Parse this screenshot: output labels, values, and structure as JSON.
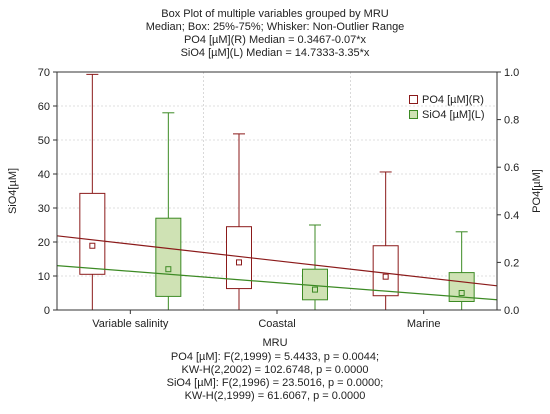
{
  "header": {
    "title_lines": [
      "Box Plot of multiple variables grouped by  MRU",
      "Median; Box: 25%-75%; Whisker: Non-Outlier Range",
      "PO4 [µM](R) Median = 0.3467-0.07*x",
      "SiO4 [µM](L) Median = 14.7333-3.35*x"
    ]
  },
  "footer": {
    "xlabel": "MRU",
    "stat_lines": [
      "PO4 [µM]:   F(2,1999) = 5.4433, p = 0.0044;",
      "KW-H(2,2002) = 102.6748, p = 0.0000",
      "SiO4 [µM]:   F(2,1996) = 23.5016, p = 0.0000;",
      "KW-H(2,1999) = 61.6067, p = 0.0000"
    ]
  },
  "colors": {
    "po4": "#8b1a1a",
    "sio4": "#3c8a24",
    "sio4_fill": "#cfe2b4",
    "axis": "#333333",
    "grid": "#c0c0c0"
  },
  "chart_data": {
    "type": "box",
    "categories": [
      "Variable salinity",
      "Coastal",
      "Marine"
    ],
    "xlabel": "MRU",
    "ylabel_left": "SiO4[µM]",
    "ylabel_right": "PO4[µM]",
    "ylim_left": [
      0,
      70
    ],
    "yticks_left": [
      0,
      10,
      20,
      30,
      40,
      50,
      60,
      70
    ],
    "ylim_right": [
      0,
      1.0
    ],
    "yticks_right": [
      "0.0",
      "0.2",
      "0.4",
      "0.6",
      "0.8",
      "1.0"
    ],
    "grid": true,
    "legend_position": "top-right",
    "series": [
      {
        "name": "PO4 [µM](R)",
        "axis": "right",
        "boxes": [
          {
            "category": "Variable salinity",
            "whisker_low": 0.0,
            "q1": 0.15,
            "median": 0.27,
            "q3": 0.49,
            "whisker_high": 0.99
          },
          {
            "category": "Coastal",
            "whisker_low": 0.0,
            "q1": 0.09,
            "median": 0.2,
            "q3": 0.35,
            "whisker_high": 0.74
          },
          {
            "category": "Marine",
            "whisker_low": 0.0,
            "q1": 0.06,
            "median": 0.14,
            "q3": 0.27,
            "whisker_high": 0.58
          }
        ],
        "trend": {
          "intercept": 0.3467,
          "slope": -0.07
        }
      },
      {
        "name": "SiO4 [µM](L)",
        "axis": "left",
        "boxes": [
          {
            "category": "Variable salinity",
            "whisker_low": 0.0,
            "q1": 4.0,
            "median": 12.0,
            "q3": 27.0,
            "whisker_high": 58.0
          },
          {
            "category": "Coastal",
            "whisker_low": 0.0,
            "q1": 3.0,
            "median": 6.0,
            "q3": 12.0,
            "whisker_high": 25.0
          },
          {
            "category": "Marine",
            "whisker_low": 0.0,
            "q1": 2.5,
            "median": 5.0,
            "q3": 11.0,
            "whisker_high": 23.0
          }
        ],
        "trend": {
          "intercept": 14.7333,
          "slope": -3.35
        }
      }
    ]
  }
}
